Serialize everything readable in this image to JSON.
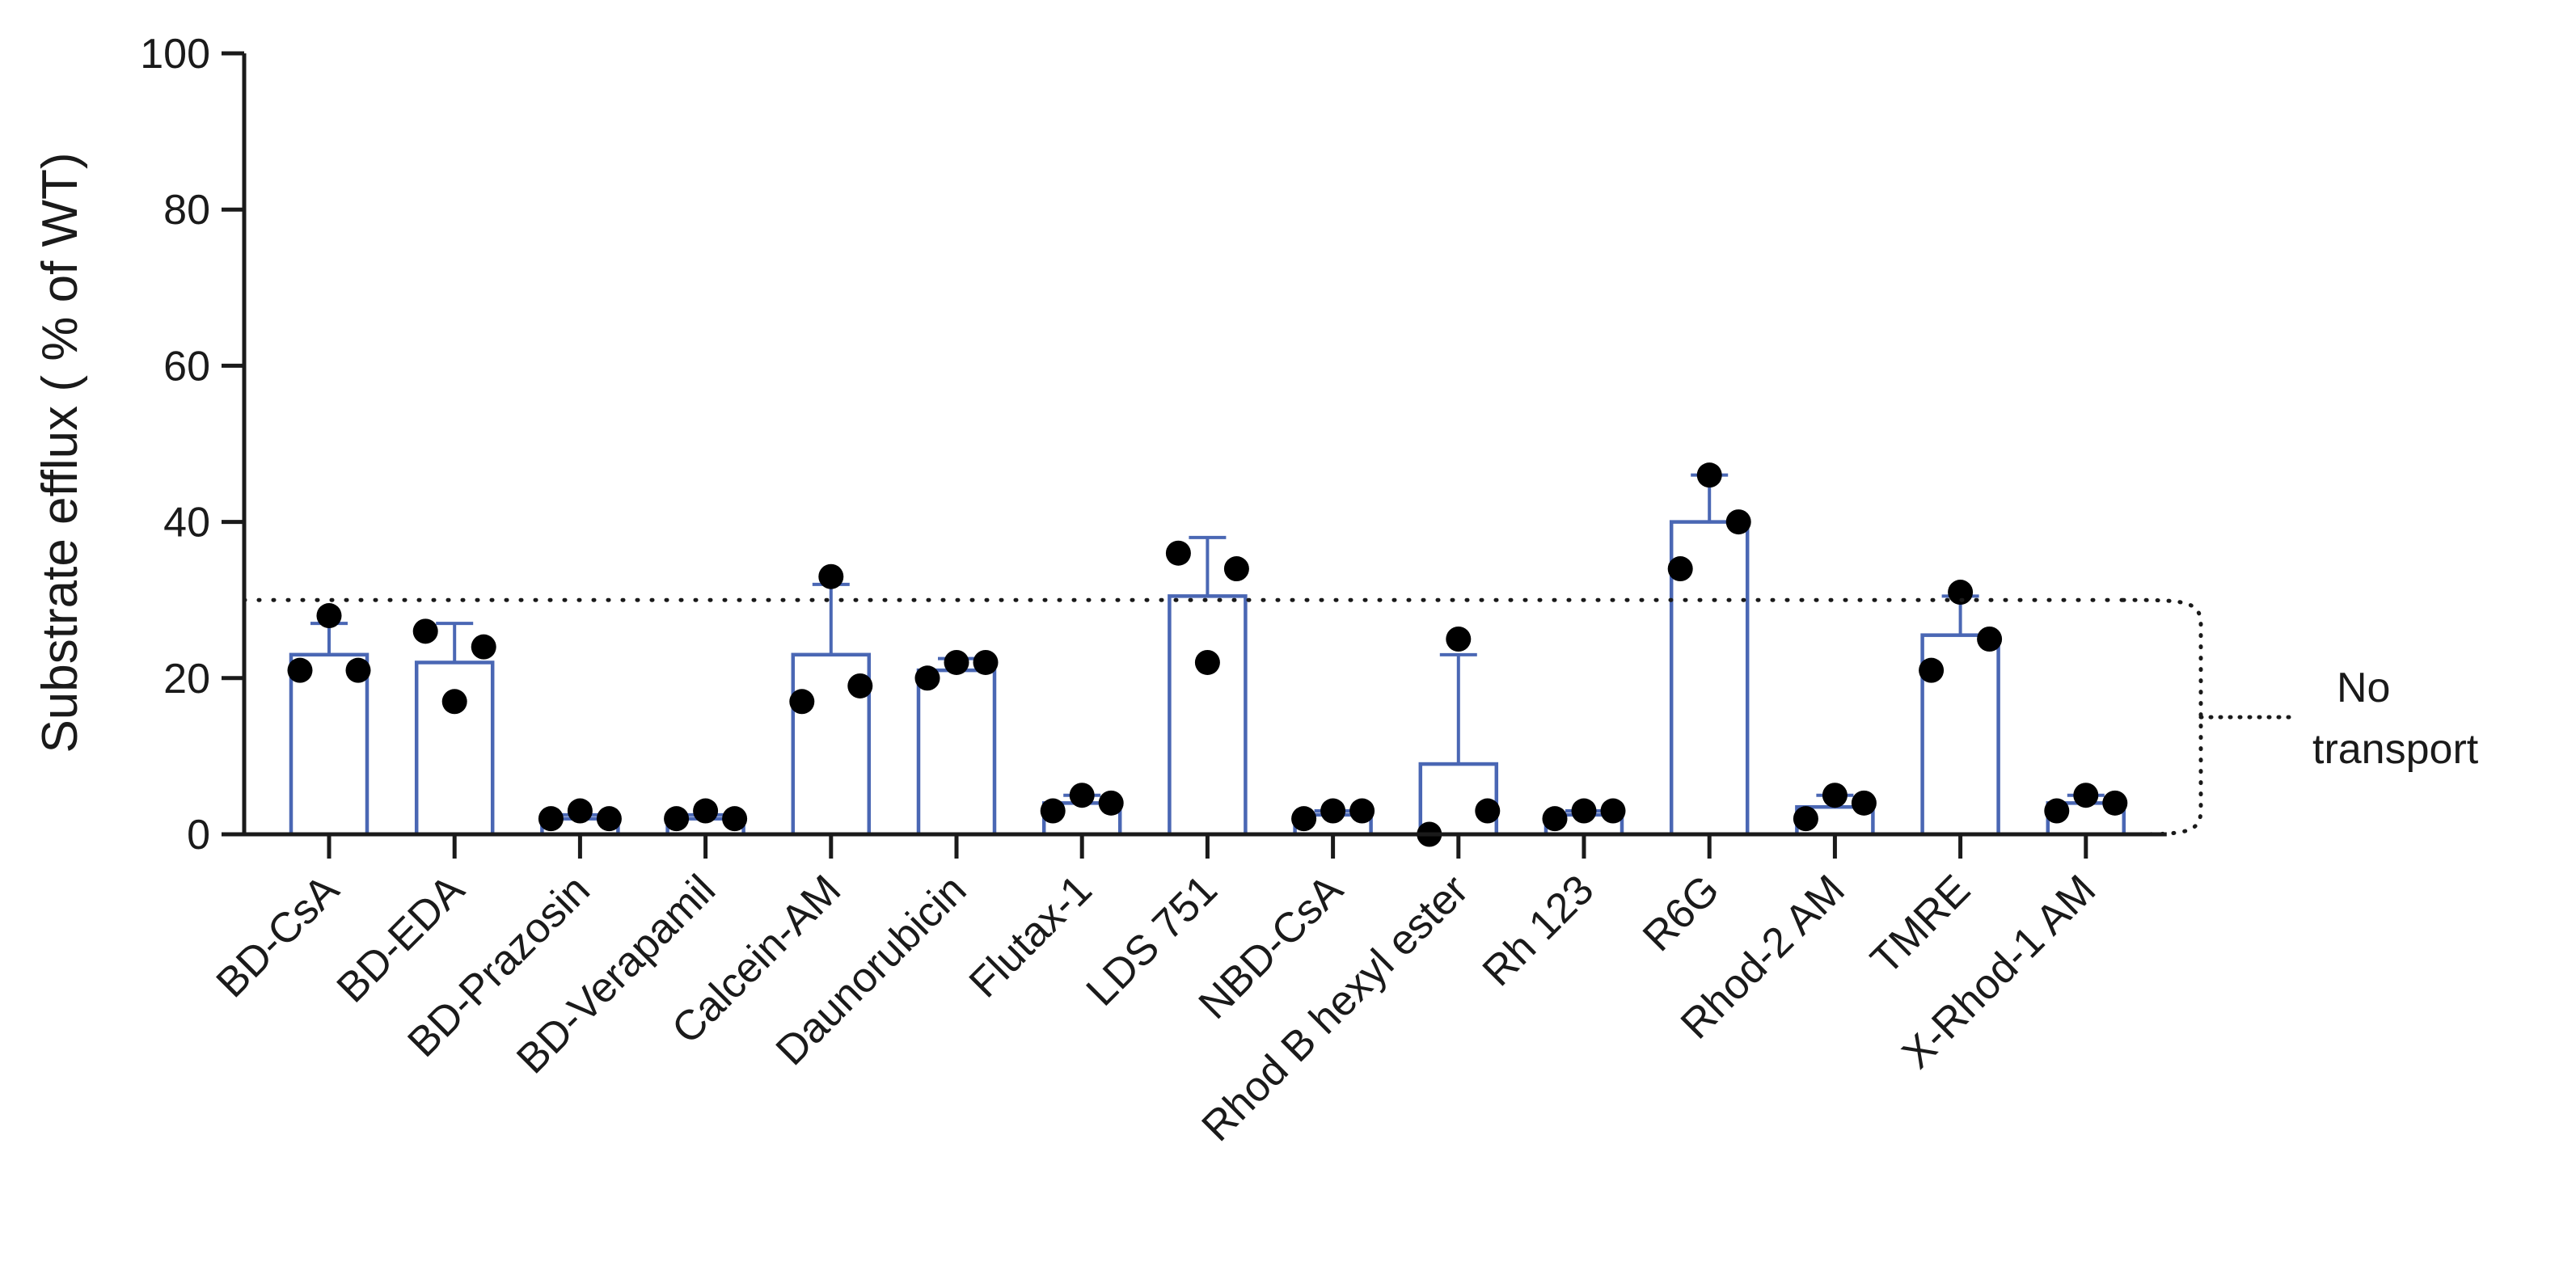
{
  "chart_data": {
    "type": "bar",
    "title": "",
    "xlabel": "",
    "ylabel": "Substrate efflux ( % of WT)",
    "ylim": [
      0,
      100
    ],
    "yticks": [
      0,
      20,
      40,
      60,
      80,
      100
    ],
    "ytick_labels": [
      "0",
      "20",
      "40",
      "60",
      "80",
      "100"
    ],
    "categories": [
      "BD-CsA",
      "BD-EDA",
      "BD-Prazosin",
      "BD-Verapamil",
      "Calcein-AM",
      "Daunorubicin",
      "Flutax-1",
      "LDS 751",
      "NBD-CsA",
      "Rhod B hexyl ester",
      "Rh 123",
      "R6G",
      "Rhod-2 AM",
      "TMRE",
      "X-Rhod-1 AM"
    ],
    "values": [
      23,
      22,
      2,
      2,
      23,
      21,
      4,
      30.5,
      2.5,
      9,
      2.5,
      40,
      3.5,
      25.5,
      4
    ],
    "error_upper": [
      27,
      27,
      2.5,
      2.5,
      32,
      22.5,
      5,
      38,
      3,
      23,
      3,
      46,
      5,
      30.5,
      5
    ],
    "points": [
      [
        21,
        28,
        21
      ],
      [
        26,
        17,
        24
      ],
      [
        2,
        3,
        2
      ],
      [
        2,
        3,
        2
      ],
      [
        17,
        33,
        19
      ],
      [
        20,
        22,
        22
      ],
      [
        3,
        5,
        4
      ],
      [
        36,
        22,
        34
      ],
      [
        2,
        3,
        3
      ],
      [
        0,
        25,
        3
      ],
      [
        2,
        3,
        3
      ],
      [
        34,
        46,
        40
      ],
      [
        2,
        5,
        4
      ],
      [
        21,
        31,
        25
      ],
      [
        3,
        5,
        4
      ]
    ],
    "threshold": {
      "value": 30,
      "style": "dotted"
    },
    "annotation": {
      "line1": "No",
      "line2": "transport"
    },
    "colors": {
      "bar_edge": "#4a67b4",
      "bar_fill": "#ffffff",
      "point": "#000000",
      "axis": "#1a1a1a"
    }
  }
}
